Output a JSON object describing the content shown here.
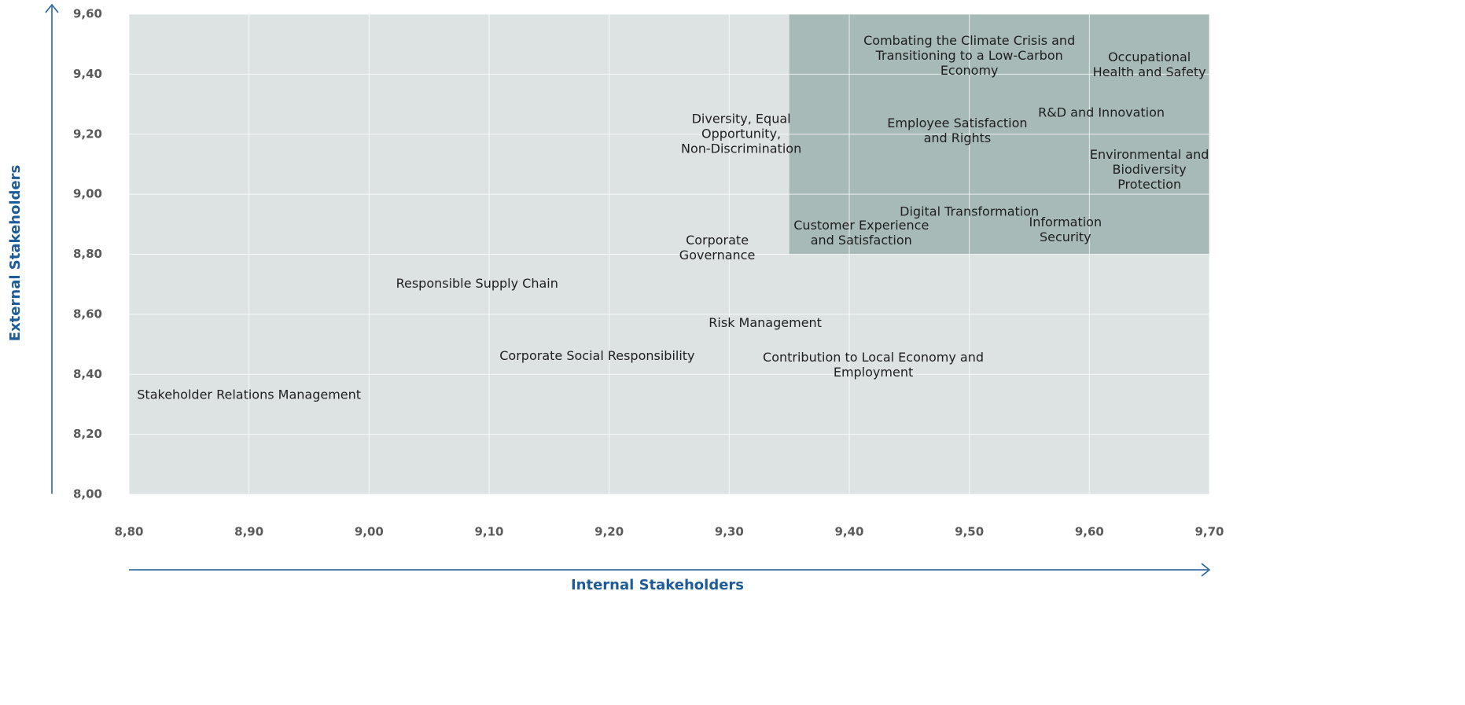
{
  "chart_data": {
    "type": "scatter",
    "x_label": "Internal Stakeholders",
    "y_label": "External Stakeholders",
    "labels": [
      [
        "Combating the Climate Crisis and",
        "Transitioning to a Low-Carbon",
        "Economy"
      ],
      [
        "Occupational",
        "Health and Safety"
      ],
      [
        "R&D and Innovation"
      ],
      [
        "Employee Satisfaction",
        "and Rights"
      ],
      [
        "Diversity, Equal",
        "Opportunity,",
        "Non-Discrimination"
      ],
      [
        "Environmental and",
        "Biodiversity",
        "Protection"
      ],
      [
        "Digital Transformation"
      ],
      [
        "Customer Experience",
        "and Satisfaction"
      ],
      [
        "Information",
        "Security"
      ],
      [
        "Corporate",
        "Governance"
      ],
      [
        "Responsible Supply Chain"
      ],
      [
        "Risk Management"
      ],
      [
        "Corporate Social Responsibility"
      ],
      [
        "Contribution to Local Economy and",
        "Employment"
      ],
      [
        "Stakeholder Relations Management"
      ]
    ],
    "x": [
      9.5,
      9.65,
      9.61,
      9.49,
      9.31,
      9.65,
      9.5,
      9.41,
      9.58,
      9.29,
      9.09,
      9.33,
      9.19,
      9.42,
      8.9
    ],
    "y": [
      9.46,
      9.43,
      9.27,
      9.21,
      9.2,
      9.08,
      8.94,
      8.87,
      8.88,
      8.82,
      8.7,
      8.57,
      8.46,
      8.43,
      8.33
    ],
    "xlim": [
      8.8,
      9.7
    ],
    "ylim": [
      8.0,
      9.6
    ],
    "xticks": [
      {
        "value": 8.8,
        "label": "8,80"
      },
      {
        "value": 8.9,
        "label": "8,90"
      },
      {
        "value": 9.0,
        "label": "9,00"
      },
      {
        "value": 9.1,
        "label": "9,10"
      },
      {
        "value": 9.2,
        "label": "9,20"
      },
      {
        "value": 9.3,
        "label": "9,30"
      },
      {
        "value": 9.4,
        "label": "9,40"
      },
      {
        "value": 9.5,
        "label": "9,50"
      },
      {
        "value": 9.6,
        "label": "9,60"
      },
      {
        "value": 9.7,
        "label": "9,70"
      }
    ],
    "yticks": [
      {
        "value": 8.0,
        "label": "8,00"
      },
      {
        "value": 8.2,
        "label": "8,20"
      },
      {
        "value": 8.4,
        "label": "8,40"
      },
      {
        "value": 8.6,
        "label": "8,60"
      },
      {
        "value": 8.8,
        "label": "8,80"
      },
      {
        "value": 9.0,
        "label": "9,00"
      },
      {
        "value": 9.2,
        "label": "9,20"
      },
      {
        "value": 9.4,
        "label": "9,40"
      },
      {
        "value": 9.6,
        "label": "9,60"
      }
    ],
    "grid": true,
    "plot_color": "#dde3e3",
    "highlight": {
      "xlim": [
        9.35,
        9.7
      ],
      "ylim": [
        8.8,
        9.6
      ],
      "color": "#a7bab8"
    }
  }
}
